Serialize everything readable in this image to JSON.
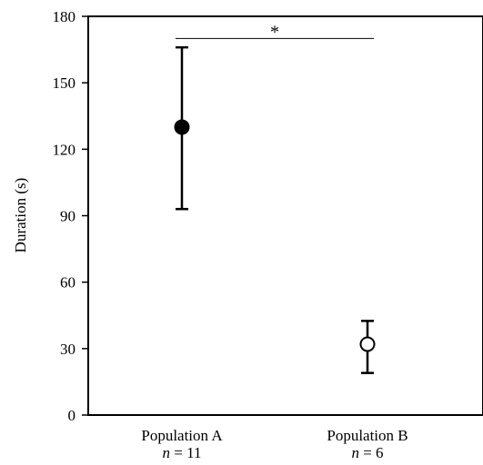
{
  "chart_data": {
    "type": "scatter",
    "ylabel": "Duration (s)",
    "xlabel": "",
    "ylim": [
      0,
      180
    ],
    "yticks": [
      0,
      30,
      60,
      90,
      120,
      150,
      180
    ],
    "grid": false,
    "categories": [
      {
        "name": "Population A",
        "n_label": "n",
        "n_value": "= 11"
      },
      {
        "name": "Population B",
        "n_label": "n",
        "n_value": "= 6"
      }
    ],
    "points": [
      {
        "category": "Population A",
        "mean": 130,
        "lower": 93,
        "upper": 166,
        "marker": "filled"
      },
      {
        "category": "Population B",
        "mean": 32,
        "lower": 19,
        "upper": 42.5,
        "marker": "open"
      }
    ],
    "significance": {
      "label": "*",
      "from": "Population A",
      "to": "Population B",
      "y": 170
    },
    "colors": {
      "axis": "#000000",
      "marker": "#000000",
      "background": "#ffffff"
    }
  }
}
